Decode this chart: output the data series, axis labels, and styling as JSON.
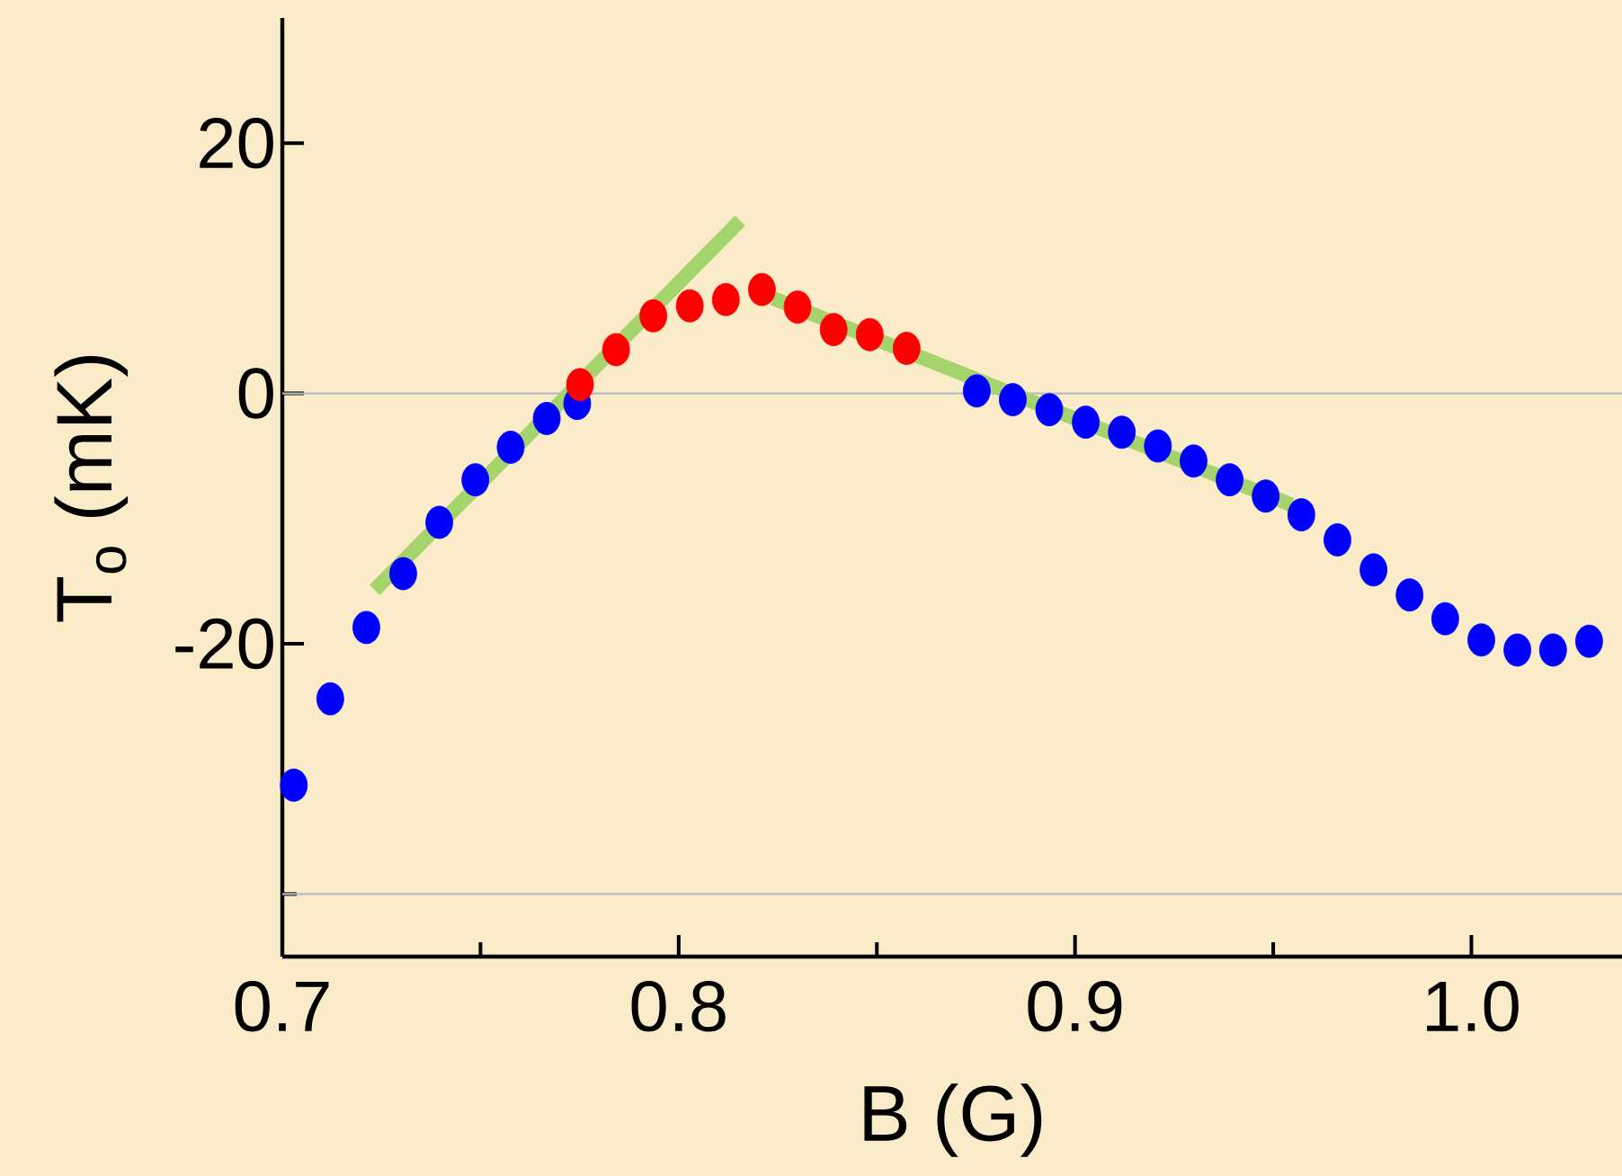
{
  "chart_data": {
    "type": "scatter",
    "xlabel": "B (G)",
    "ylabel": "T$_{o}$ (mK)",
    "xlim": [
      0.7,
      1.038
    ],
    "ylim": [
      -45,
      30
    ],
    "xticks": [
      0.7,
      {
        "value": 0.75,
        "label": null
      },
      0.8,
      {
        "value": 0.85,
        "label": null
      },
      0.9,
      {
        "value": 0.95,
        "label": null
      },
      {
        "value": 1.0,
        "label": "1.0"
      }
    ],
    "yticks": [
      {
        "value": -40,
        "label": null
      },
      -20,
      0,
      20
    ],
    "grid": false,
    "ref_lines": [
      {
        "axis": "y",
        "value": 0,
        "color": "#b4bac8"
      },
      {
        "axis": "y",
        "value": -40,
        "color": "#b4bac8"
      }
    ],
    "series": [
      {
        "type": "scatter",
        "color": "#0000ff",
        "marker": "circle",
        "x": [
          0.7029,
          0.7121,
          0.7212,
          0.7305,
          0.7396,
          0.7487,
          0.7576,
          0.7667,
          0.7744,
          0.8752,
          0.8843,
          0.8935,
          0.9027,
          0.9118,
          0.9209,
          0.9299,
          0.939,
          0.9481,
          0.9571,
          0.9662,
          0.9753,
          0.9844,
          0.9934,
          1.0025,
          1.0116,
          1.0206,
          1.0297
        ],
        "values": [
          -31.3,
          -24.4,
          -18.7,
          -14.4,
          -10.3,
          -6.9,
          -4.3,
          -2.0,
          -0.8,
          0.2,
          -0.5,
          -1.3,
          -2.3,
          -3.1,
          -4.2,
          -5.4,
          -6.9,
          -8.2,
          -9.7,
          -11.7,
          -14.1,
          -16.1,
          -18.0,
          -19.7,
          -20.5,
          -20.5,
          -19.8
        ]
      },
      {
        "type": "scatter",
        "color": "#ff0000",
        "marker": "circle",
        "x": [
          0.7751,
          0.7842,
          0.7936,
          0.8028,
          0.8119,
          0.821,
          0.83,
          0.8391,
          0.8482,
          0.8575
        ],
        "values": [
          0.7,
          3.5,
          6.2,
          7.0,
          7.5,
          8.3,
          6.9,
          5.1,
          4.7,
          3.6
        ]
      },
      {
        "type": "line",
        "color": "#a6d46c",
        "marker": "none",
        "x": [
          0.7233,
          0.8155
        ],
        "values": [
          -15.7,
          13.8
        ]
      },
      {
        "type": "line",
        "color": "#a6d46c",
        "marker": "none",
        "x": [
          0.8238,
          0.9546
        ],
        "values": [
          7.6,
          -8.9
        ]
      }
    ]
  }
}
